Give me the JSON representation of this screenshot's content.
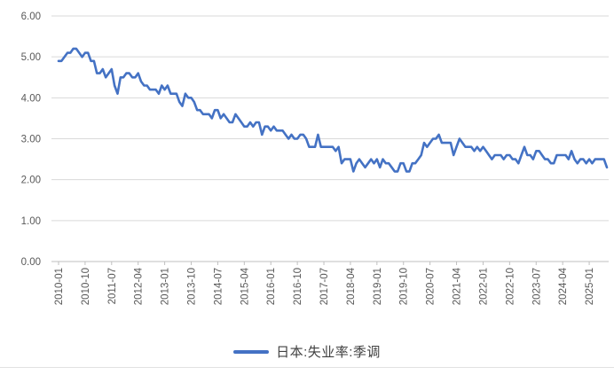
{
  "chart_data": {
    "type": "line",
    "title": "",
    "legend_position": "bottom",
    "grid": true,
    "ylim": [
      0,
      6
    ],
    "y_tick_labels": [
      "0.00",
      "1.00",
      "2.00",
      "3.00",
      "4.00",
      "5.00",
      "6.00"
    ],
    "x_tick_interval_months": 9,
    "x_tick_labels": [
      "2010-01",
      "2010-10",
      "2011-07",
      "2012-04",
      "2013-01",
      "2013-10",
      "2014-07",
      "2015-04",
      "2016-01",
      "2016-10",
      "2017-07",
      "2018-04",
      "2019-01",
      "2019-10",
      "2020-07",
      "2021-04",
      "2022-01",
      "2022-10",
      "2023-07",
      "2024-04",
      "2025-01"
    ],
    "series": [
      {
        "name": "日本:失业率:季调",
        "color": "#4472C4",
        "frequency": "monthly",
        "start": "2010-01",
        "end": "2025-07",
        "values_by_year": {
          "2010": [
            4.9,
            4.9,
            5.0,
            5.1,
            5.1,
            5.2,
            5.2,
            5.1,
            5.0,
            5.1,
            5.1,
            4.9
          ],
          "2011": [
            4.9,
            4.6,
            4.6,
            4.7,
            4.5,
            4.6,
            4.7,
            4.3,
            4.1,
            4.5,
            4.5,
            4.6
          ],
          "2012": [
            4.6,
            4.5,
            4.5,
            4.6,
            4.4,
            4.3,
            4.3,
            4.2,
            4.2,
            4.2,
            4.1,
            4.3
          ],
          "2013": [
            4.2,
            4.3,
            4.1,
            4.1,
            4.1,
            3.9,
            3.8,
            4.1,
            4.0,
            4.0,
            3.9,
            3.7
          ],
          "2014": [
            3.7,
            3.6,
            3.6,
            3.6,
            3.5,
            3.7,
            3.7,
            3.5,
            3.6,
            3.5,
            3.4,
            3.4
          ],
          "2015": [
            3.6,
            3.5,
            3.4,
            3.3,
            3.3,
            3.4,
            3.3,
            3.4,
            3.4,
            3.1,
            3.3,
            3.3
          ],
          "2016": [
            3.2,
            3.3,
            3.2,
            3.2,
            3.2,
            3.1,
            3.0,
            3.1,
            3.0,
            3.0,
            3.1,
            3.1
          ],
          "2017": [
            3.0,
            2.8,
            2.8,
            2.8,
            3.1,
            2.8,
            2.8,
            2.8,
            2.8,
            2.8,
            2.7,
            2.8
          ],
          "2018": [
            2.4,
            2.5,
            2.5,
            2.5,
            2.2,
            2.4,
            2.5,
            2.4,
            2.3,
            2.4,
            2.5,
            2.4
          ],
          "2019": [
            2.5,
            2.3,
            2.5,
            2.4,
            2.4,
            2.3,
            2.2,
            2.2,
            2.4,
            2.4,
            2.2,
            2.2
          ],
          "2020": [
            2.4,
            2.4,
            2.5,
            2.6,
            2.9,
            2.8,
            2.9,
            3.0,
            3.0,
            3.1,
            2.9,
            2.9
          ],
          "2021": [
            2.9,
            2.9,
            2.6,
            2.8,
            3.0,
            2.9,
            2.8,
            2.8,
            2.8,
            2.7,
            2.8,
            2.7
          ],
          "2022": [
            2.8,
            2.7,
            2.6,
            2.5,
            2.6,
            2.6,
            2.6,
            2.5,
            2.6,
            2.6,
            2.5,
            2.5
          ],
          "2023": [
            2.4,
            2.6,
            2.8,
            2.6,
            2.6,
            2.5,
            2.7,
            2.7,
            2.6,
            2.5,
            2.5,
            2.4
          ],
          "2024": [
            2.4,
            2.6,
            2.6,
            2.6,
            2.6,
            2.5,
            2.7,
            2.5,
            2.4,
            2.5,
            2.5,
            2.4
          ],
          "2025": [
            2.5,
            2.4,
            2.5,
            2.5,
            2.5,
            2.5,
            2.3
          ]
        }
      }
    ]
  },
  "colors": {
    "line": "#4472C4",
    "grid": "#D9D9D9",
    "axis": "#BFBFBF",
    "tick_text": "#595959",
    "legend_text": "#404040",
    "background": "#FFFFFF"
  }
}
